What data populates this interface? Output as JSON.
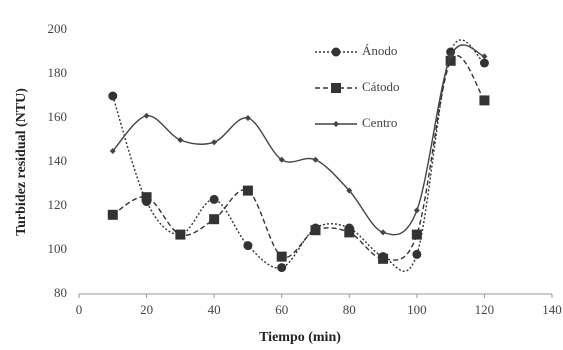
{
  "chart_data": {
    "type": "line",
    "x_label": "Tiempo (min)",
    "y_label": "Turbidez residual (NTU)",
    "x": [
      10,
      20,
      30,
      40,
      50,
      60,
      70,
      80,
      90,
      100,
      110,
      120
    ],
    "series": [
      {
        "name": "Ánodo",
        "color": "#333333",
        "marker": "circle",
        "dash": "dotted",
        "values": [
          170,
          122,
          107,
          123,
          102,
          92,
          110,
          110,
          97,
          98,
          190,
          185
        ]
      },
      {
        "name": "Cátodo",
        "color": "#333333",
        "marker": "square",
        "dash": "dashed",
        "values": [
          116,
          124,
          107,
          114,
          127,
          97,
          109,
          108,
          96,
          107,
          186,
          168
        ]
      },
      {
        "name": "Centro",
        "color": "#444444",
        "marker": "diamond",
        "dash": "solid",
        "values": [
          145,
          161,
          150,
          149,
          160,
          141,
          141,
          127,
          108,
          118,
          188,
          188
        ]
      }
    ],
    "xlim": [
      0,
      140
    ],
    "xticks": [
      0,
      20,
      40,
      60,
      80,
      100,
      120,
      140
    ],
    "ylim": [
      80,
      200
    ],
    "yticks": [
      80,
      100,
      120,
      140,
      160,
      180,
      200
    ],
    "grid": false,
    "smooth": true
  }
}
